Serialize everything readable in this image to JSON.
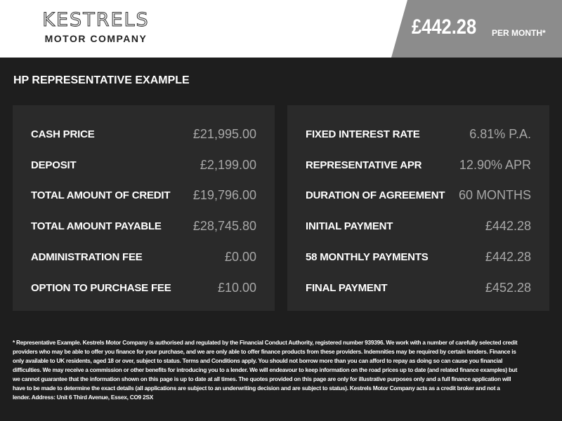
{
  "header": {
    "logo_main": "KESTRELS",
    "logo_sub": "MOTOR COMPANY",
    "price": "£442.28",
    "price_suffix": "PER MONTH*"
  },
  "title": "HP REPRESENTATIVE EXAMPLE",
  "left_panel": [
    {
      "label": "CASH PRICE",
      "value": "£21,995.00"
    },
    {
      "label": "DEPOSIT",
      "value": "£2,199.00"
    },
    {
      "label": "TOTAL AMOUNT OF CREDIT",
      "value": "£19,796.00"
    },
    {
      "label": "TOTAL AMOUNT PAYABLE",
      "value": "£28,745.80"
    },
    {
      "label": "ADMINISTRATION FEE",
      "value": "£0.00"
    },
    {
      "label": "OPTION TO PURCHASE FEE",
      "value": "£10.00"
    }
  ],
  "right_panel": [
    {
      "label": "FIXED INTEREST RATE",
      "value": "6.81% P.A."
    },
    {
      "label": "REPRESENTATIVE APR",
      "value": "12.90% APR"
    },
    {
      "label": "DURATION OF AGREEMENT",
      "value": "60 MONTHS"
    },
    {
      "label": "INITIAL PAYMENT",
      "value": "£442.28"
    },
    {
      "label": "58 MONTHLY PAYMENTS",
      "value": "£442.28"
    },
    {
      "label": "FINAL PAYMENT",
      "value": "£452.28"
    }
  ],
  "disclaimer": "* Representative Example. Kestrels Motor Company is authorised and regulated by the Financial Conduct Authority, registered number 939396. We work with a number of carefully selected credit providers who may be able to offer you finance for your purchase, and we are only able to offer finance products from these providers. Indemnities may be required by certain lenders. Finance is only available to UK residents, aged 18 or over, subject to status. Terms and Conditions apply. You should not borrow more than you can afford to repay as doing so can cause you financial difficulties. We may receive a commission or other benefits for introducing you to a lender. We will endeavour to keep information on the road prices up to date (and related finance examples) but we cannot guarantee that the information shown on this page is up to date at all times. The quotes provided on this page are only for illustrative purposes only and a full finance application will have to be made to determine the exact details (all applications are subject to an underwriting decision and are subject to status). Kestrels Motor Company acts as a credit broker and not a lender. Address: Unit 6 Third Avenue, Essex, CO9 2SX",
  "colors": {
    "background": "#1e1e1e",
    "panel": "#2a2a2a",
    "price_box": "#8c8c8c",
    "value_text": "#a8a8a8"
  }
}
